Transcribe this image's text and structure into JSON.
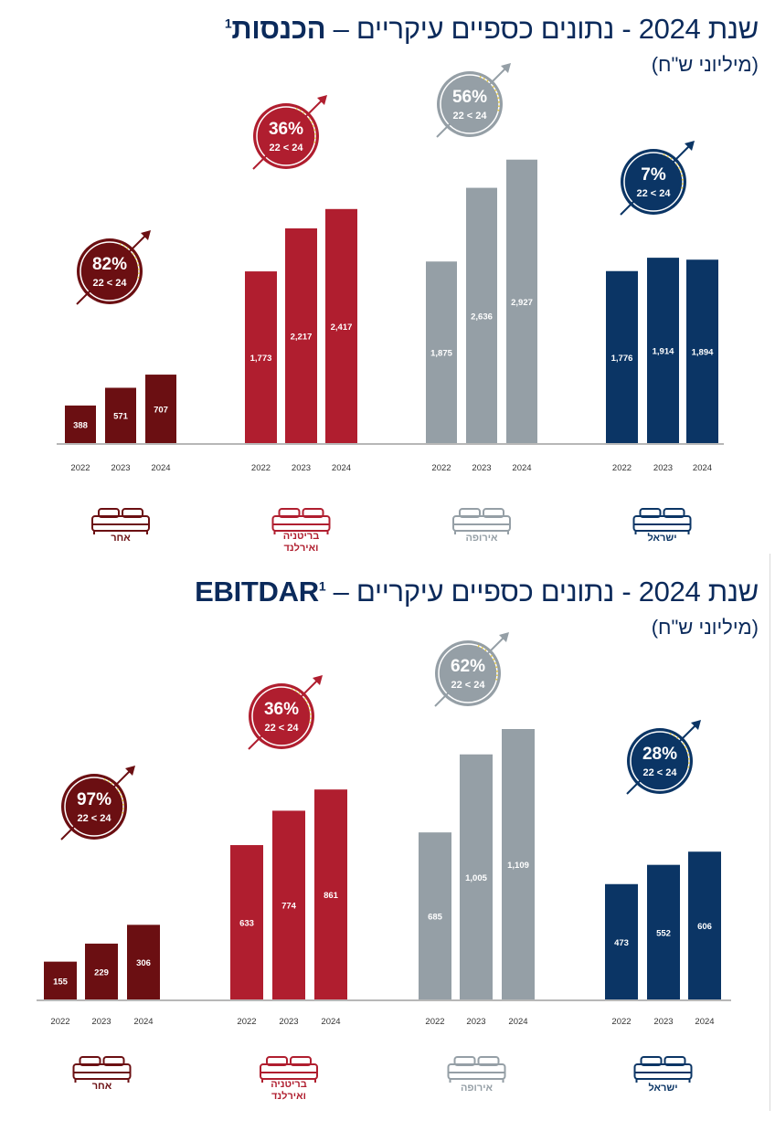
{
  "colors": {
    "other": "#6b0f12",
    "britain": "#b01e2f",
    "europe": "#959fa6",
    "israel": "#0b3565",
    "axis": "#8c8c8c",
    "dotted": "#e4c94a"
  },
  "icons": {
    "segment": "bed-icon",
    "growth": "arrow-up-right-icon"
  },
  "chart_data": [
    {
      "type": "bar",
      "title_prefix": "שנת 2024 - נתונים כספיים עיקריים – ",
      "title_bold": "הכנסות",
      "title_footnote": "1",
      "subtitle": "(מיליוני ש\"ח)",
      "categories": [
        "2022",
        "2023",
        "2024"
      ],
      "ylim": [
        0,
        3000
      ],
      "growth_period": "22 < 24",
      "series": [
        {
          "name": "אחר",
          "color_key": "other",
          "values": [
            388,
            571,
            707
          ],
          "labels": [
            "388",
            "571",
            "707"
          ],
          "growth": "82%"
        },
        {
          "name": "בריטניה ואירלנד",
          "color_key": "britain",
          "values": [
            1773,
            2217,
            2417
          ],
          "labels": [
            "1,773",
            "2,217",
            "2,417"
          ],
          "growth": "36%"
        },
        {
          "name": "אירופה",
          "color_key": "europe",
          "values": [
            1875,
            2636,
            2927
          ],
          "labels": [
            "1,875",
            "2,636",
            "2,927"
          ],
          "growth": "56%"
        },
        {
          "name": "ישראל",
          "color_key": "israel",
          "values": [
            1776,
            1914,
            1894
          ],
          "labels": [
            "1,776",
            "1,914",
            "1,894"
          ],
          "growth": "7%"
        }
      ]
    },
    {
      "type": "bar",
      "title_prefix": "שנת 2024 - נתונים כספיים עיקריים – ",
      "title_bold": "EBITDAR",
      "title_footnote": "1",
      "subtitle": "(מיליוני ש\"ח)",
      "categories": [
        "2022",
        "2023",
        "2024"
      ],
      "ylim": [
        0,
        1109
      ],
      "growth_period": "22 < 24",
      "series": [
        {
          "name": "אחר",
          "color_key": "other",
          "values": [
            155,
            229,
            306
          ],
          "labels": [
            "155",
            "229",
            "306"
          ],
          "growth": "97%"
        },
        {
          "name": "בריטניה ואירלנד",
          "color_key": "britain",
          "values": [
            633,
            774,
            861
          ],
          "labels": [
            "633",
            "774",
            "861"
          ],
          "growth": "36%"
        },
        {
          "name": "אירופה",
          "color_key": "europe",
          "values": [
            685,
            1005,
            1109
          ],
          "labels": [
            "685",
            "1,005",
            "1,109"
          ],
          "growth": "62%"
        },
        {
          "name": "ישראל",
          "color_key": "israel",
          "values": [
            473,
            552,
            606
          ],
          "labels": [
            "473",
            "552",
            "606"
          ],
          "growth": "28%"
        }
      ]
    }
  ]
}
